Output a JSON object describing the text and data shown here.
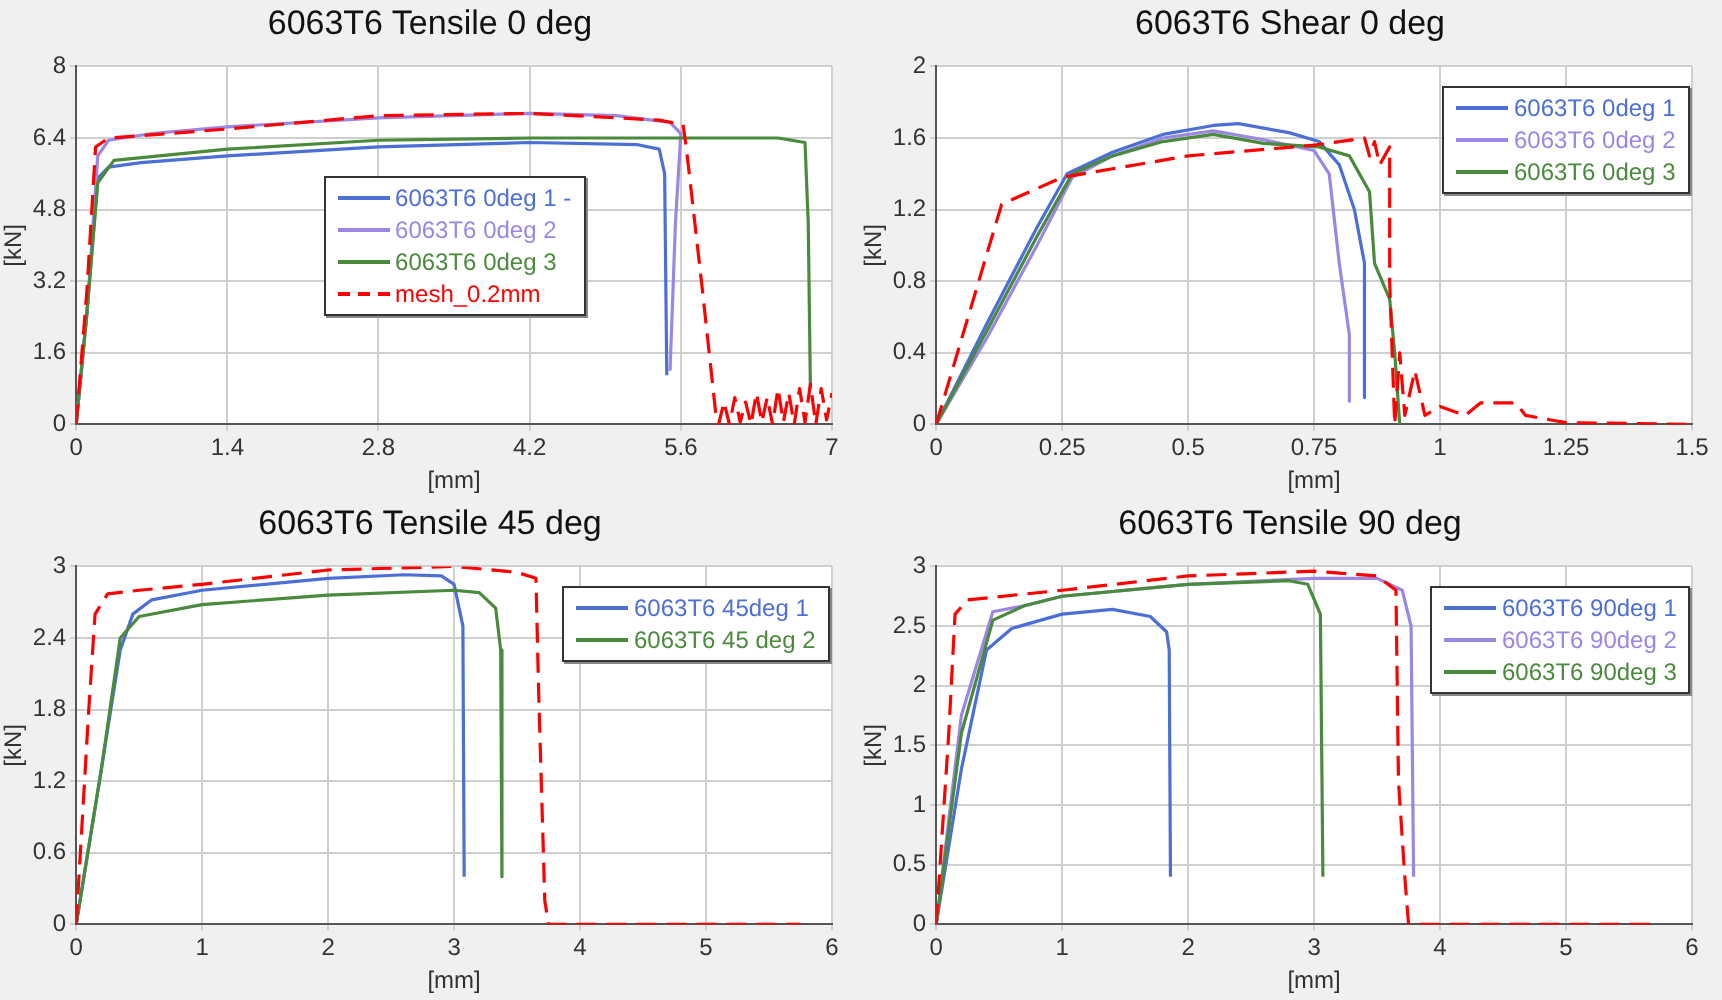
{
  "chart_data": [
    {
      "type": "line",
      "title": "6063T6 Tensile 0 deg",
      "xlabel": "[mm]",
      "ylabel": "[kN]",
      "xlim": [
        0,
        7
      ],
      "xticks": [
        0,
        1.4,
        2.8,
        4.2,
        5.6,
        7
      ],
      "ylim": [
        0,
        8
      ],
      "yticks": [
        0,
        1.6,
        3.2,
        4.8,
        6.4,
        8
      ],
      "grid": true,
      "legend": "center",
      "marker": "none",
      "series": [
        {
          "name": "6063T6 0deg 1 -",
          "color": "#4b6fd6",
          "x": [
            0,
            0.1,
            0.2,
            0.3,
            0.6,
            1.4,
            2.8,
            4.2,
            5.2,
            5.4,
            5.45,
            5.47
          ],
          "values": [
            0,
            2.5,
            5.5,
            5.75,
            5.85,
            6.0,
            6.2,
            6.3,
            6.25,
            6.15,
            5.6,
            1.1
          ]
        },
        {
          "name": "6063T6 0deg 2",
          "color": "#9b86e3",
          "x": [
            0,
            0.1,
            0.2,
            0.3,
            0.7,
            1.4,
            2.8,
            4.2,
            5.0,
            5.5,
            5.6,
            5.55,
            5.5
          ],
          "values": [
            0,
            2.5,
            6.0,
            6.35,
            6.5,
            6.65,
            6.85,
            6.95,
            6.9,
            6.75,
            6.5,
            4.5,
            1.2
          ]
        },
        {
          "name": "6063T6 0deg 3",
          "color": "#4a8a3c",
          "x": [
            0,
            0.1,
            0.2,
            0.35,
            1.4,
            2.8,
            4.2,
            5.6,
            6.5,
            6.75,
            6.78,
            6.8
          ],
          "values": [
            0,
            2.5,
            5.4,
            5.9,
            6.15,
            6.35,
            6.4,
            6.4,
            6.4,
            6.3,
            4.5,
            0.8
          ]
        },
        {
          "name": "mesh_0.2mm",
          "color": "#ff0000",
          "line_style": "dashed",
          "x": [
            0,
            0.1,
            0.18,
            0.3,
            1.4,
            2.8,
            4.2,
            5.4,
            5.62,
            5.65,
            5.8,
            5.93,
            5.95,
            6.0,
            6.05,
            6.1,
            6.15,
            6.2,
            6.25,
            6.3,
            6.35,
            6.4,
            6.45,
            6.5,
            6.55,
            6.6,
            6.65,
            6.7,
            6.75,
            6.8,
            6.85,
            6.9,
            6.95,
            7.0
          ],
          "values": [
            0,
            3.0,
            6.2,
            6.4,
            6.6,
            6.9,
            6.95,
            6.8,
            6.7,
            6.2,
            3.0,
            0.1,
            0,
            0.5,
            0,
            0.6,
            0.05,
            0.5,
            0,
            0.7,
            0.05,
            0.6,
            0,
            0.8,
            0.05,
            0.7,
            0,
            0.8,
            0.05,
            0.9,
            0,
            0.8,
            0.1,
            0.7
          ]
        }
      ]
    },
    {
      "type": "line",
      "title": "6063T6 Shear 0 deg",
      "xlabel": "[mm]",
      "ylabel": "[kN]",
      "xlim": [
        0,
        1.5
      ],
      "xticks": [
        0,
        0.25,
        0.5,
        0.75,
        1,
        1.25,
        1.5
      ],
      "ylim": [
        0,
        2
      ],
      "yticks": [
        0,
        0.4,
        0.8,
        1.2,
        1.6,
        2
      ],
      "grid": true,
      "legend": "top right",
      "marker": "none",
      "series": [
        {
          "name": "6063T6 0deg 1",
          "color": "#4b6fd6",
          "x": [
            0,
            0.1,
            0.2,
            0.26,
            0.35,
            0.45,
            0.55,
            0.6,
            0.7,
            0.76,
            0.8,
            0.83,
            0.85,
            0.85
          ],
          "values": [
            0,
            0.56,
            1.1,
            1.4,
            1.52,
            1.62,
            1.67,
            1.68,
            1.63,
            1.58,
            1.45,
            1.2,
            0.9,
            0.15
          ]
        },
        {
          "name": "6063T6 0deg 2",
          "color": "#9b86e3",
          "x": [
            0,
            0.1,
            0.2,
            0.27,
            0.35,
            0.45,
            0.55,
            0.65,
            0.75,
            0.78,
            0.8,
            0.82,
            0.82
          ],
          "values": [
            0,
            0.48,
            1.0,
            1.38,
            1.5,
            1.6,
            1.64,
            1.59,
            1.53,
            1.4,
            0.9,
            0.5,
            0.13
          ]
        },
        {
          "name": "6063T6 0deg 3",
          "color": "#4a8a3c",
          "x": [
            0,
            0.1,
            0.2,
            0.27,
            0.35,
            0.45,
            0.55,
            0.65,
            0.76,
            0.82,
            0.86,
            0.87,
            0.9,
            0.91,
            0.92
          ],
          "values": [
            0,
            0.52,
            1.05,
            1.4,
            1.5,
            1.58,
            1.62,
            1.57,
            1.55,
            1.5,
            1.3,
            0.9,
            0.7,
            0.4,
            0
          ]
        },
        {
          "color": "#ff0000",
          "line_style": "dashed",
          "x": [
            0,
            0.13,
            0.25,
            0.5,
            0.75,
            0.85,
            0.86,
            0.87,
            0.88,
            0.9,
            0.9,
            0.91,
            0.92,
            0.93,
            0.95,
            0.97,
            1.0,
            1.05,
            1.08,
            1.15,
            1.17,
            1.25,
            1.5
          ],
          "values": [
            0,
            1.23,
            1.38,
            1.5,
            1.56,
            1.6,
            1.5,
            1.58,
            1.45,
            1.55,
            0.8,
            0,
            0.4,
            0.05,
            0.3,
            0.05,
            0.1,
            0.05,
            0.12,
            0.12,
            0.05,
            0.01,
            0
          ]
        }
      ]
    },
    {
      "type": "line",
      "title": "6063T6 Tensile 45 deg",
      "xlabel": "[mm]",
      "ylabel": "[kN]",
      "xlim": [
        0,
        6
      ],
      "xticks": [
        0,
        1,
        2,
        3,
        4,
        5,
        6
      ],
      "ylim": [
        0,
        3
      ],
      "yticks": [
        0,
        0.6,
        1.2,
        1.8,
        2.4,
        3
      ],
      "grid": true,
      "legend": "top right",
      "marker": "none",
      "series": [
        {
          "name": "6063T6 45deg 1",
          "color": "#4b6fd6",
          "x": [
            0,
            0.2,
            0.35,
            0.45,
            0.6,
            1,
            2,
            2.6,
            2.9,
            3.0,
            3.07,
            3.08
          ],
          "values": [
            0,
            1.3,
            2.3,
            2.6,
            2.72,
            2.8,
            2.9,
            2.93,
            2.92,
            2.85,
            2.5,
            0.4
          ]
        },
        {
          "name": "6063T6 45 deg 2",
          "color": "#4a8a3c",
          "x": [
            0,
            0.2,
            0.35,
            0.5,
            1,
            2,
            3,
            3.2,
            3.33,
            3.37,
            3.38
          ],
          "values": [
            0,
            1.3,
            2.4,
            2.58,
            2.68,
            2.76,
            2.8,
            2.78,
            2.65,
            2.3,
            0.4
          ]
        },
        {
          "color": "#ff0000",
          "line_style": "dashed",
          "x": [
            0,
            0.1,
            0.15,
            0.25,
            0.5,
            1,
            2,
            3,
            3.5,
            3.65,
            3.67,
            3.72,
            3.75,
            5.75
          ],
          "values": [
            0,
            1.8,
            2.6,
            2.77,
            2.8,
            2.85,
            2.97,
            3.0,
            2.95,
            2.9,
            2.0,
            0.2,
            0,
            0
          ]
        }
      ]
    },
    {
      "type": "line",
      "title": "6063T6 Tensile 90 deg",
      "xlabel": "[mm]",
      "ylabel": "[kN]",
      "xlim": [
        0,
        6
      ],
      "xticks": [
        0,
        1,
        2,
        3,
        4,
        5,
        6
      ],
      "ylim": [
        0,
        3
      ],
      "yticks": [
        0,
        0.5,
        1,
        1.5,
        2,
        2.5,
        3
      ],
      "grid": true,
      "legend": "top right",
      "marker": "none",
      "series": [
        {
          "name": "6063T6 90deg 1",
          "color": "#4b6fd6",
          "x": [
            0,
            0.2,
            0.4,
            0.6,
            1,
            1.4,
            1.7,
            1.83,
            1.85,
            1.86
          ],
          "values": [
            0,
            1.3,
            2.3,
            2.48,
            2.6,
            2.64,
            2.58,
            2.45,
            2.3,
            0.4
          ]
        },
        {
          "name": "6063T6 90deg 2",
          "color": "#9b86e3",
          "x": [
            0,
            0.2,
            0.45,
            0.7,
            1,
            2,
            3,
            3.5,
            3.7,
            3.77,
            3.79
          ],
          "values": [
            0,
            1.75,
            2.62,
            2.67,
            2.75,
            2.85,
            2.9,
            2.9,
            2.8,
            2.5,
            0.4
          ]
        },
        {
          "name": "6063T6 90deg 3",
          "color": "#4a8a3c",
          "x": [
            0,
            0.2,
            0.45,
            0.7,
            1,
            2,
            2.8,
            2.95,
            3.05,
            3.07
          ],
          "values": [
            0,
            1.6,
            2.55,
            2.67,
            2.75,
            2.85,
            2.88,
            2.85,
            2.6,
            0.4
          ]
        },
        {
          "color": "#ff0000",
          "line_style": "dashed",
          "x": [
            0,
            0.1,
            0.15,
            0.25,
            1,
            2,
            3,
            3.5,
            3.65,
            3.67,
            3.72,
            3.75,
            5.7
          ],
          "values": [
            0,
            1.6,
            2.6,
            2.72,
            2.8,
            2.92,
            2.96,
            2.92,
            2.8,
            1.2,
            0.4,
            0,
            0
          ]
        }
      ]
    }
  ]
}
